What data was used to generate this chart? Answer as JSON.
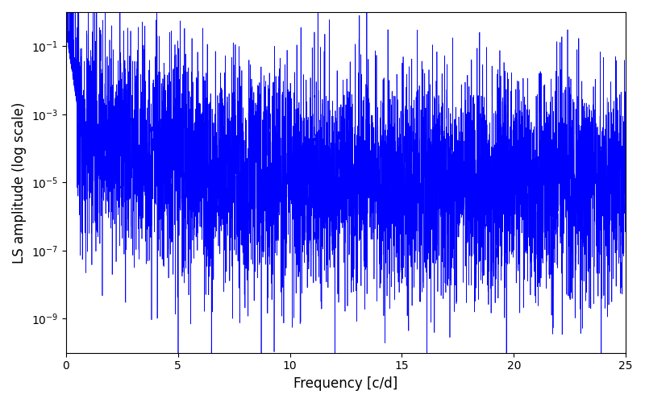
{
  "xlabel": "Frequency [c/d]",
  "ylabel": "LS amplitude (log scale)",
  "xlim": [
    0,
    25
  ],
  "ylim_log": [
    1e-10,
    1
  ],
  "line_color": "#0000ff",
  "line_width": 0.5,
  "yscale": "log",
  "figsize": [
    8.0,
    5.0
  ],
  "dpi": 100,
  "freq_max": 25.0,
  "n_points": 8000,
  "seed": 12345,
  "background_color": "#ffffff",
  "yticks": [
    1e-09,
    1e-07,
    1e-05,
    0.001,
    0.1
  ],
  "xticks": [
    0,
    5,
    10,
    15,
    20,
    25
  ]
}
